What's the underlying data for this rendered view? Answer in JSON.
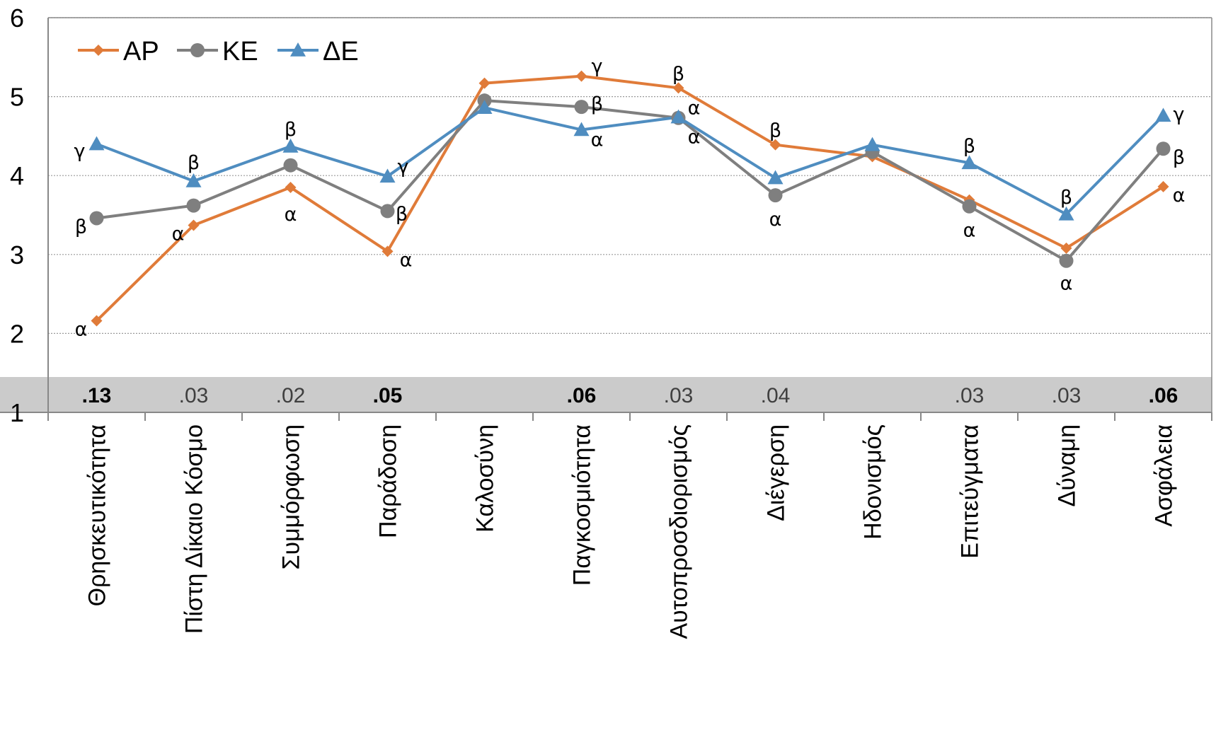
{
  "chart_data": {
    "type": "line",
    "categories": [
      "Θρησκευτικότητα",
      "Πίστη Δίκαιο Κόσμο",
      "Συμμόρφωση",
      "Παράδοση",
      "Καλοσύνη",
      "Παγκοσμιότητα",
      "Αυτοπροσδιορισμός",
      "Διέγερση",
      "Ηδονισμός",
      "Επιτεύγματα",
      "Δύναμη",
      "Ασφάλεια"
    ],
    "series": [
      {
        "name": "ΑΡ",
        "color": "#e07b39",
        "marker": "diamond",
        "values": [
          2.16,
          3.37,
          3.85,
          3.04,
          5.17,
          5.26,
          5.11,
          4.39,
          4.24,
          3.69,
          3.08,
          3.86
        ],
        "letters": [
          "α",
          "α",
          "α",
          "α",
          "",
          "γ",
          "β",
          "β",
          "",
          "",
          "",
          "α"
        ]
      },
      {
        "name": "ΚΕ",
        "color": "#7f7f7f",
        "marker": "circle",
        "values": [
          3.46,
          3.62,
          4.13,
          3.55,
          4.95,
          4.87,
          4.73,
          3.75,
          4.3,
          3.61,
          2.92,
          4.34
        ],
        "letters": [
          "β",
          "",
          "",
          "β",
          "",
          "β",
          "α",
          "α",
          "",
          "α",
          "α",
          "β"
        ]
      },
      {
        "name": "ΔΕ",
        "color": "#4f8dc0",
        "marker": "triangle",
        "values": [
          4.4,
          3.93,
          4.37,
          3.99,
          4.86,
          4.58,
          4.74,
          3.97,
          4.39,
          4.16,
          3.51,
          4.76
        ],
        "letters": [
          "γ",
          "β",
          "β",
          "γ",
          "",
          "α",
          "α",
          "",
          "",
          "β",
          "β",
          "γ"
        ]
      }
    ],
    "effect_sizes": [
      ".13",
      ".03",
      ".02",
      ".05",
      "",
      ".06",
      ".03",
      ".04",
      "",
      ".03",
      ".03",
      ".06"
    ],
    "effect_bold": [
      true,
      false,
      false,
      true,
      false,
      true,
      false,
      false,
      false,
      false,
      false,
      true
    ],
    "y_ticks": [
      "1",
      "2",
      "3",
      "4",
      "5",
      "6"
    ],
    "ylim": [
      1,
      6
    ],
    "grid": true,
    "legend_position": "top-left",
    "band_color": "#cbcbcb"
  }
}
